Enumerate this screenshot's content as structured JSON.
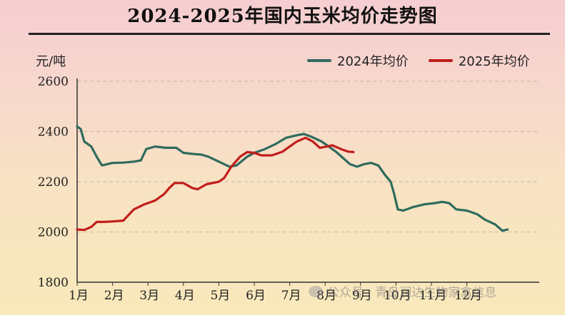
{
  "header": {
    "title": "2024-2025年国内玉米均价走势图",
    "unit": "元/吨"
  },
  "watermark": {
    "text": "公众号 · 青岛润达生物家禽信息"
  },
  "chart_data": {
    "type": "line",
    "title": "2024-2025年国内玉米均价走势图",
    "ylabel": "元/吨",
    "xlabel": "",
    "ylim": [
      1800,
      2600
    ],
    "yticks": [
      1800,
      2000,
      2200,
      2400,
      2600
    ],
    "xlim": [
      1,
      13
    ],
    "x_ticks": [
      {
        "label": "1月",
        "x": 1
      },
      {
        "label": "2月",
        "x": 2
      },
      {
        "label": "3月",
        "x": 3
      },
      {
        "label": "4月",
        "x": 4
      },
      {
        "label": "5月",
        "x": 5
      },
      {
        "label": "6月",
        "x": 6
      },
      {
        "label": "7月",
        "x": 7
      },
      {
        "label": "8月",
        "x": 8
      },
      {
        "label": "9月",
        "x": 9
      },
      {
        "label": "10月",
        "x": 10
      },
      {
        "label": "11月",
        "x": 11
      },
      {
        "label": "12月",
        "x": 12
      }
    ],
    "grid": "horizontal dashed",
    "legend_position": "top-right",
    "series": [
      {
        "name": "2024年均价",
        "color": "#2f6b5e",
        "points": [
          [
            1.0,
            2420
          ],
          [
            1.1,
            2410
          ],
          [
            1.2,
            2360
          ],
          [
            1.4,
            2340
          ],
          [
            1.55,
            2300
          ],
          [
            1.7,
            2265
          ],
          [
            1.85,
            2270
          ],
          [
            2.0,
            2275
          ],
          [
            2.3,
            2276
          ],
          [
            2.6,
            2280
          ],
          [
            2.8,
            2285
          ],
          [
            2.95,
            2330
          ],
          [
            3.2,
            2340
          ],
          [
            3.5,
            2335
          ],
          [
            3.8,
            2335
          ],
          [
            4.0,
            2315
          ],
          [
            4.3,
            2310
          ],
          [
            4.5,
            2308
          ],
          [
            4.7,
            2300
          ],
          [
            5.0,
            2280
          ],
          [
            5.3,
            2260
          ],
          [
            5.5,
            2265
          ],
          [
            5.8,
            2300
          ],
          [
            6.0,
            2315
          ],
          [
            6.3,
            2330
          ],
          [
            6.6,
            2350
          ],
          [
            6.9,
            2375
          ],
          [
            7.2,
            2385
          ],
          [
            7.4,
            2390
          ],
          [
            7.6,
            2380
          ],
          [
            7.9,
            2360
          ],
          [
            8.1,
            2340
          ],
          [
            8.3,
            2320
          ],
          [
            8.5,
            2295
          ],
          [
            8.7,
            2270
          ],
          [
            8.9,
            2260
          ],
          [
            9.1,
            2270
          ],
          [
            9.3,
            2275
          ],
          [
            9.5,
            2265
          ],
          [
            9.7,
            2225
          ],
          [
            9.85,
            2200
          ],
          [
            9.95,
            2150
          ],
          [
            10.05,
            2090
          ],
          [
            10.2,
            2085
          ],
          [
            10.5,
            2100
          ],
          [
            10.8,
            2110
          ],
          [
            11.1,
            2115
          ],
          [
            11.3,
            2120
          ],
          [
            11.5,
            2115
          ],
          [
            11.7,
            2090
          ],
          [
            12.0,
            2085
          ],
          [
            12.3,
            2070
          ],
          [
            12.5,
            2050
          ],
          [
            12.8,
            2030
          ],
          [
            13.0,
            2005
          ],
          [
            13.15,
            2010
          ]
        ]
      },
      {
        "name": "2025年均价",
        "color": "#c21d1b",
        "points": [
          [
            1.0,
            2010
          ],
          [
            1.2,
            2008
          ],
          [
            1.4,
            2020
          ],
          [
            1.55,
            2040
          ],
          [
            1.75,
            2040
          ],
          [
            2.0,
            2042
          ],
          [
            2.3,
            2045
          ],
          [
            2.6,
            2090
          ],
          [
            2.9,
            2110
          ],
          [
            3.2,
            2125
          ],
          [
            3.45,
            2150
          ],
          [
            3.6,
            2175
          ],
          [
            3.75,
            2195
          ],
          [
            4.0,
            2195
          ],
          [
            4.25,
            2175
          ],
          [
            4.4,
            2170
          ],
          [
            4.65,
            2190
          ],
          [
            5.0,
            2200
          ],
          [
            5.15,
            2215
          ],
          [
            5.35,
            2260
          ],
          [
            5.6,
            2300
          ],
          [
            5.8,
            2318
          ],
          [
            6.0,
            2315
          ],
          [
            6.2,
            2305
          ],
          [
            6.5,
            2305
          ],
          [
            6.8,
            2320
          ],
          [
            7.0,
            2340
          ],
          [
            7.2,
            2360
          ],
          [
            7.45,
            2375
          ],
          [
            7.65,
            2360
          ],
          [
            7.85,
            2335
          ],
          [
            8.05,
            2340
          ],
          [
            8.2,
            2345
          ],
          [
            8.45,
            2330
          ],
          [
            8.65,
            2320
          ],
          [
            8.8,
            2318
          ]
        ]
      }
    ]
  }
}
